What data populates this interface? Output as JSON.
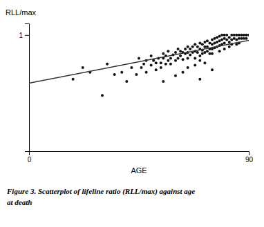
{
  "chart_data": {
    "type": "scatter",
    "xlabel": "AGE",
    "ylabel": "RLL/max",
    "annotations": [
      "Figure 3. Scatterplot of lifeline ratio (RLL/max) against age",
      "at death"
    ],
    "xlim": [
      0,
      90
    ],
    "ylim": [
      0,
      1.1
    ],
    "xticks": [
      0,
      90
    ],
    "yticks": [
      1
    ],
    "grid": false,
    "series": [
      {
        "type": "scatter",
        "color": "#111111",
        "x": [
          18,
          22,
          25,
          30,
          32,
          35,
          38,
          40,
          42,
          44,
          45,
          46,
          47,
          48,
          48,
          50,
          50,
          51,
          52,
          52,
          53,
          54,
          54,
          55,
          55,
          56,
          56,
          57,
          57,
          58,
          58,
          59,
          60,
          60,
          61,
          61,
          62,
          62,
          63,
          63,
          64,
          64,
          65,
          65,
          65,
          66,
          66,
          67,
          67,
          68,
          68,
          68,
          69,
          69,
          70,
          70,
          70,
          70,
          71,
          71,
          71,
          72,
          72,
          72,
          73,
          73,
          73,
          74,
          74,
          74,
          75,
          75,
          75,
          75,
          76,
          76,
          76,
          77,
          77,
          77,
          78,
          78,
          78,
          78,
          79,
          79,
          79,
          80,
          80,
          80,
          80,
          81,
          81,
          82,
          82,
          82,
          83,
          83,
          83,
          84,
          84,
          85,
          85,
          85,
          86,
          86,
          86,
          87,
          87,
          88,
          88,
          89,
          89,
          90,
          55,
          60,
          65,
          70,
          75,
          72,
          68,
          63
        ],
        "values": [
          0.62,
          0.72,
          0.68,
          0.48,
          0.75,
          0.66,
          0.68,
          0.6,
          0.72,
          0.66,
          0.8,
          0.72,
          0.75,
          0.78,
          0.68,
          0.82,
          0.74,
          0.78,
          0.76,
          0.7,
          0.8,
          0.76,
          0.72,
          0.84,
          0.8,
          0.82,
          0.75,
          0.86,
          0.78,
          0.8,
          0.75,
          0.83,
          0.85,
          0.78,
          0.88,
          0.8,
          0.86,
          0.82,
          0.85,
          0.79,
          0.88,
          0.84,
          0.9,
          0.85,
          0.8,
          0.88,
          0.83,
          0.9,
          0.85,
          0.92,
          0.86,
          0.8,
          0.9,
          0.85,
          0.93,
          0.88,
          0.82,
          0.78,
          0.92,
          0.87,
          0.84,
          0.94,
          0.9,
          0.85,
          0.95,
          0.9,
          0.86,
          0.93,
          0.88,
          0.84,
          0.96,
          0.92,
          0.88,
          0.84,
          0.97,
          0.93,
          0.89,
          0.98,
          0.94,
          0.9,
          0.99,
          0.95,
          0.91,
          0.86,
          1.0,
          0.96,
          0.92,
          1.0,
          0.97,
          0.93,
          0.88,
          1.0,
          0.96,
          0.98,
          0.94,
          0.9,
          1.0,
          0.96,
          0.92,
          1.0,
          0.97,
          1.0,
          0.96,
          0.92,
          1.0,
          0.97,
          0.93,
          1.0,
          0.97,
          1.0,
          0.97,
          1.0,
          0.97,
          1.0,
          0.6,
          0.65,
          0.72,
          0.62,
          0.7,
          0.76,
          0.74,
          0.68
        ]
      },
      {
        "type": "line",
        "color": "#333333",
        "x": [
          0,
          90
        ],
        "values": [
          0.585,
          0.955
        ]
      }
    ]
  }
}
